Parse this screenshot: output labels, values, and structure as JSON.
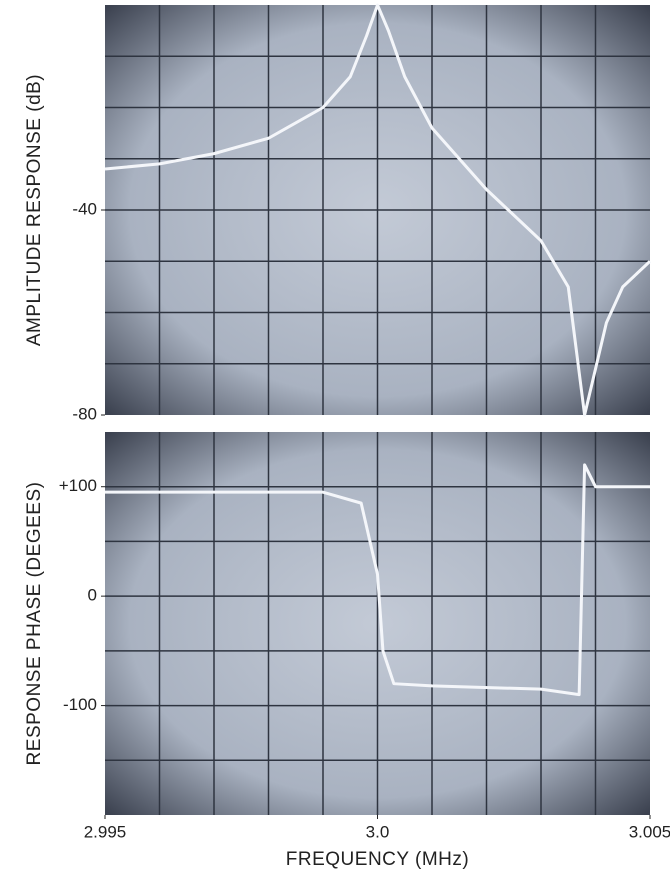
{
  "chart_data": [
    {
      "type": "line",
      "y_label": "AMPLITUDE RESPONSE (dB)",
      "x": [
        2.995,
        2.996,
        2.997,
        2.998,
        2.999,
        2.9995,
        2.9998,
        3.0,
        3.0002,
        3.0005,
        3.001,
        3.002,
        3.003,
        3.0035,
        3.0038,
        3.0042,
        3.0045,
        3.005
      ],
      "values": [
        -32,
        -31,
        -29,
        -26,
        -20,
        -14,
        -6,
        0,
        -5,
        -14,
        -24,
        -36,
        -46,
        -55,
        -80,
        -62,
        -55,
        -50
      ],
      "color": "#f4f6fa",
      "xlim": [
        2.995,
        3.005
      ],
      "ylim": [
        -80,
        0
      ],
      "yticks": [
        -80,
        -40
      ]
    },
    {
      "type": "line",
      "y_label": "RESPONSE PHASE (DEGEES)",
      "x_label": "FREQUENCY (MHz)",
      "x": [
        2.995,
        2.999,
        2.9997,
        3.0,
        3.0001,
        3.0003,
        3.001,
        3.003,
        3.0037,
        3.0038,
        3.004,
        3.005
      ],
      "values": [
        95,
        95,
        85,
        20,
        -50,
        -80,
        -82,
        -85,
        -90,
        120,
        100,
        100
      ],
      "color": "#f4f6fa",
      "xlim": [
        2.995,
        3.005
      ],
      "xticks": [
        2.995,
        {
          "value": 3.0,
          "label": "3.0"
        },
        3.005
      ],
      "ylim": [
        -200,
        150
      ],
      "yticks": [
        {
          "value": 100,
          "label": "+100"
        },
        0,
        -100
      ]
    }
  ]
}
